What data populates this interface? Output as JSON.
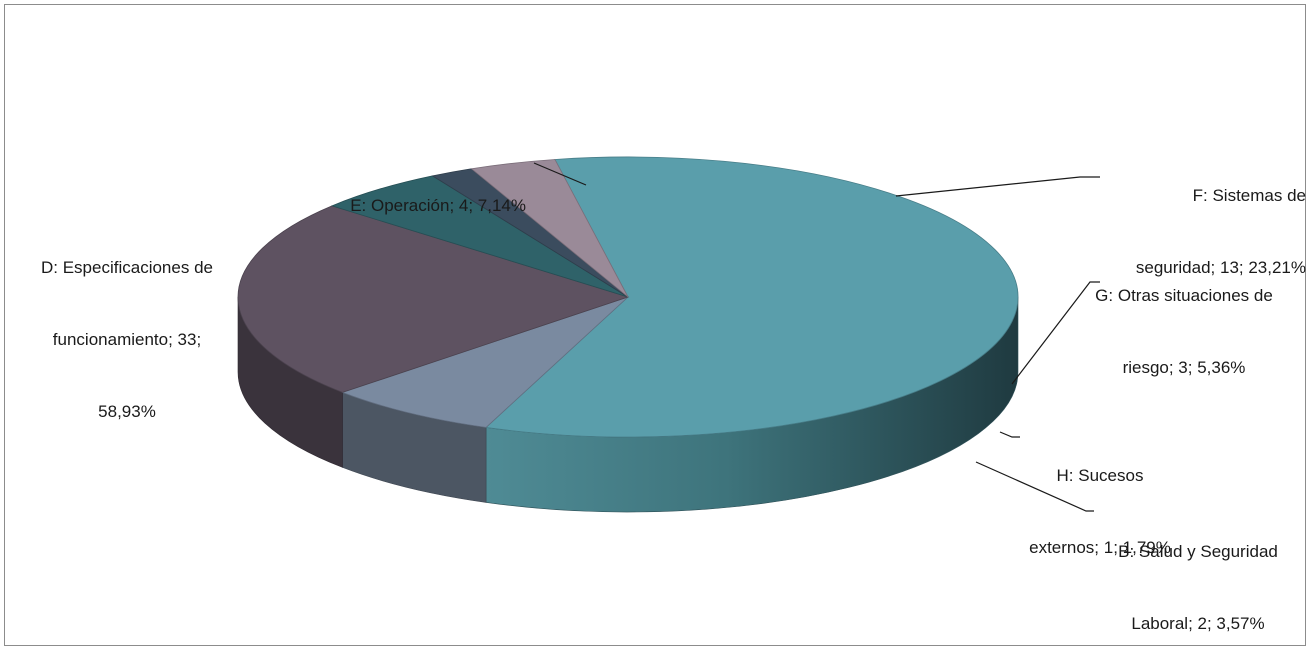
{
  "chart_data": {
    "type": "pie",
    "variant": "3d",
    "slices": [
      {
        "category": "D: Especificaciones de funcionamiento",
        "value": 33,
        "percent": "58,93%",
        "color": "#5a9eab",
        "label_lines": [
          "D: Especificaciones de",
          "funcionamiento; 33;",
          "58,93%"
        ]
      },
      {
        "category": "E: Operación",
        "value": 4,
        "percent": "7,14%",
        "color": "#7a8aa0",
        "label_lines": [
          "E: Operación; 4; 7,14%"
        ]
      },
      {
        "category": "F: Sistemas de seguridad",
        "value": 13,
        "percent": "23,21%",
        "color": "#5e5261",
        "label_lines": [
          "F: Sistemas de",
          "seguridad; 13; 23,21%"
        ]
      },
      {
        "category": "G: Otras situaciones de riesgo",
        "value": 3,
        "percent": "5,36%",
        "color": "#2f6269",
        "label_lines": [
          "G: Otras situaciones de",
          "riesgo; 3; 5,36%"
        ]
      },
      {
        "category": "H: Sucesos externos",
        "value": 1,
        "percent": "1,79%",
        "color": "#3b4c5e",
        "label_lines": [
          "H: Sucesos",
          "externos; 1; 1,79%"
        ]
      },
      {
        "category": "B: Salud y Seguridad Laboral",
        "value": 2,
        "percent": "3,57%",
        "color": "#9a8a98",
        "label_lines": [
          "B: Salud y Seguridad",
          "Laboral; 2; 3,57%"
        ]
      }
    ]
  }
}
